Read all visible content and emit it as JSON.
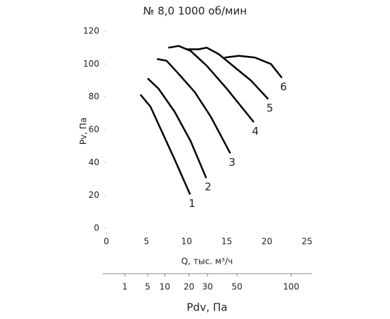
{
  "chart_data": {
    "type": "line",
    "title": "№ 8,0 1000 об/мин",
    "y_label": "Pv, Па",
    "x_label": "Q, тыс. м³/ч",
    "x2_label": "Pdv, Па",
    "xlim": [
      0,
      25
    ],
    "xticks": [
      0,
      5,
      10,
      15,
      20,
      25
    ],
    "ylim": [
      0,
      120
    ],
    "yticks": [
      0,
      20,
      40,
      60,
      80,
      100,
      120
    ],
    "x2lim": [
      0,
      118
    ],
    "x2scale": "sqrt",
    "x2ticks": [
      1,
      5,
      10,
      20,
      30,
      50,
      100
    ],
    "grid": false,
    "series": [
      {
        "name": "1",
        "color": "#000000",
        "x": [
          4.3,
          5.5,
          7,
          8.5,
          10.4
        ],
        "values": [
          81,
          74,
          58,
          42,
          21
        ]
      },
      {
        "name": "2",
        "color": "#000000",
        "x": [
          5.2,
          6.5,
          8.5,
          10.5,
          12.4
        ],
        "values": [
          91,
          85,
          71,
          53,
          31
        ]
      },
      {
        "name": "3",
        "color": "#000000",
        "x": [
          6.4,
          7.5,
          9,
          11,
          13,
          15.4
        ],
        "values": [
          103,
          102,
          94,
          83,
          68,
          46
        ]
      },
      {
        "name": "4",
        "color": "#000000",
        "x": [
          7.8,
          9,
          10.5,
          12.5,
          15,
          18.3
        ],
        "values": [
          110,
          111,
          108,
          99,
          85,
          65
        ]
      },
      {
        "name": "5",
        "color": "#000000",
        "x": [
          10,
          11.5,
          12.5,
          14,
          16,
          18,
          20.1
        ],
        "values": [
          109,
          109,
          110,
          106,
          98,
          90,
          79
        ]
      },
      {
        "name": "6",
        "color": "#000000",
        "x": [
          14.8,
          16.5,
          18.5,
          20.5,
          21.8
        ],
        "values": [
          104,
          105,
          104,
          100,
          92
        ]
      }
    ]
  }
}
